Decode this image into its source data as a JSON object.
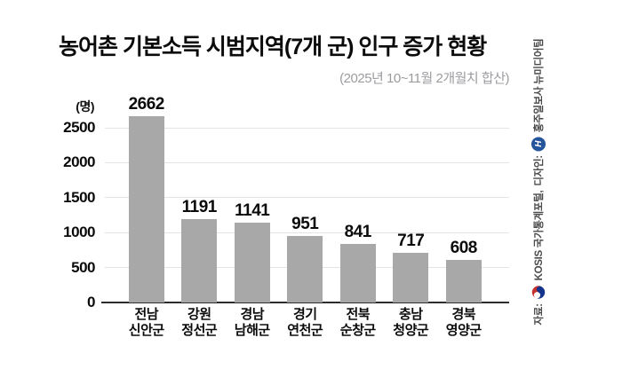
{
  "credit": {
    "source_label": "자료:",
    "source_org": "KOSIS 국가통계포털,",
    "design_label": "디자인:",
    "design_org": "홍주일보사 뉴미디어팀",
    "gov_logo": "korea-government-emblem",
    "press_logo": "hongju-ilbo-emblem",
    "press_logo_letter": "H",
    "colors": {
      "gov_red": "#c63130",
      "gov_blue": "#14348c",
      "press_blue": "#24549c",
      "text": "#4b4b4b"
    }
  },
  "chart_data": {
    "type": "bar",
    "title": "농어촌 기본소득 시범지역(7개 군) 인구 증가 현황",
    "subtitle": "(2025년 10~11월 2개월치 합산)",
    "ylabel": "(명)",
    "categories": [
      "전남 신안군",
      "강원 정선군",
      "경남 남해군",
      "경기 연천군",
      "전북 순창군",
      "충남 청양군",
      "경북 영양군"
    ],
    "category_lines": [
      [
        "전남",
        "신안군"
      ],
      [
        "강원",
        "정선군"
      ],
      [
        "경남",
        "남해군"
      ],
      [
        "경기",
        "연천군"
      ],
      [
        "전북",
        "순창군"
      ],
      [
        "충남",
        "청양군"
      ],
      [
        "경북",
        "영양군"
      ]
    ],
    "values": [
      2662,
      1191,
      1141,
      951,
      841,
      717,
      608
    ],
    "yticks": [
      0,
      500,
      1000,
      1500,
      2000,
      2500
    ],
    "ylim": [
      0,
      2700
    ],
    "grid": true,
    "legend_position": "none",
    "value_labels": true,
    "bar_color": "#a8a8a8",
    "grid_color": "#e4e4e4",
    "axis_color": "#2d2d2d",
    "label_color": "#0b0b0b"
  }
}
